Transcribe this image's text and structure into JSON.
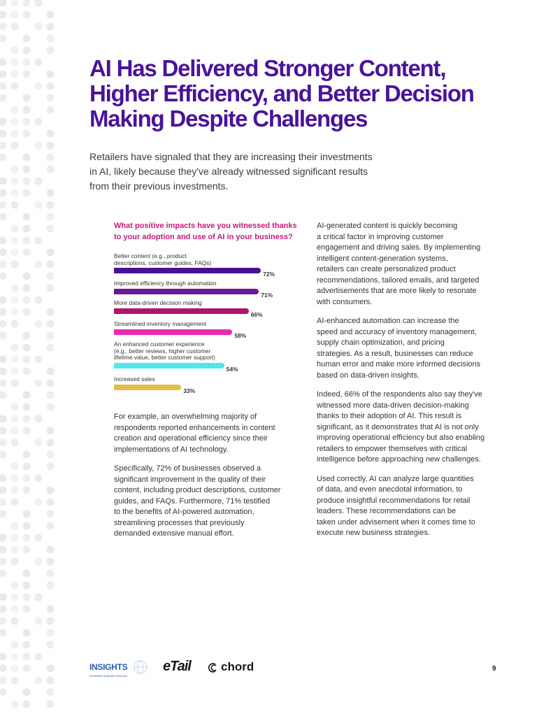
{
  "page": {
    "title_lines": [
      "AI Has Delivered Stronger Content,",
      "Higher Efficiency, and Better Decision",
      "Making Despite Challenges"
    ],
    "intro_lines": [
      "Retailers have signaled that they are increasing their investments",
      "in AI, likely because they've already witnessed significant results",
      "from their previous investments."
    ],
    "page_number": "9"
  },
  "chart_data": {
    "type": "bar",
    "orientation": "horizontal",
    "title_lines": [
      "What positive impacts have you witnessed thanks",
      "to your adoption and use of AI in your business?"
    ],
    "categories": [
      [
        "Better content (e.g., product",
        "descriptions, customer guides, FAQs)"
      ],
      [
        "Improved efficiency through automation"
      ],
      [
        "More data-driven decision making"
      ],
      [
        "Streamlined inventory management"
      ],
      [
        "An enhanced customer experience",
        "(e.g., better reviews, higher customer",
        "lifetime value, better customer support)"
      ],
      [
        "Increased sales"
      ]
    ],
    "values": [
      72,
      71,
      66,
      58,
      54,
      33
    ],
    "value_labels": [
      "72%",
      "71%",
      "66%",
      "58%",
      "54%",
      "33%"
    ],
    "colors": [
      "#4a0f96",
      "#6a1a96",
      "#b0146e",
      "#e92ab2",
      "#4ee8ec",
      "#e2bd48"
    ],
    "xlim": [
      0,
      100
    ],
    "grid": false,
    "xlabel": "",
    "ylabel": ""
  },
  "left_column": {
    "paragraphs": [
      [
        "For example, an overwhelming majority of",
        "respondents reported enhancements in content",
        "creation and operational efficiency since their",
        "implementations of AI technology."
      ],
      [
        "Specifically, 72% of businesses observed a",
        "significant improvement in the quality of their",
        "content, including product descriptions, customer",
        "guides, and FAQs. Furthermore, 71% testified",
        "to the benefits of AI-powered automation,",
        "streamlining processes that previously",
        "demanded extensive manual effort."
      ]
    ]
  },
  "right_column": {
    "paragraphs": [
      [
        "AI-generated content is quickly becoming",
        "a critical factor in improving customer",
        "engagement and driving sales. By implementing",
        "intelligent content-generation systems,",
        "retailers can create personalized product",
        "recommendations, tailored emails, and targeted",
        "advertisements that are more likely to resonate",
        "with consumers."
      ],
      [
        "AI-enhanced automation can increase the",
        "speed and accuracy of inventory management,",
        "supply chain optimization, and pricing",
        "strategies. As a result, businesses can reduce",
        "human error and make more informed decisions",
        "based on data-driven insights."
      ],
      [
        "Indeed, 66% of the respondents also say they've",
        "witnessed more data-driven decision-making",
        "thanks to their adoption of AI. This result is",
        "significant, as it demonstrates that AI is not only",
        "improving operational efficiency but also enabling",
        "retailers to empower themselves with critical",
        "intelligence before approaching new challenges."
      ],
      [
        "Used correctly, AI can analyze large quantities",
        "of data, and even anecdotal information, to",
        "produce insightful recommendations for retail",
        "leaders. These recommendations can be",
        "taken under advisement when it comes time to",
        "execute new business strategies."
      ]
    ]
  },
  "footer": {
    "insights_word": "INSIGHTS",
    "insights_tag": "Worldwide Business Research",
    "etail": "eTail",
    "chord": "chord"
  }
}
